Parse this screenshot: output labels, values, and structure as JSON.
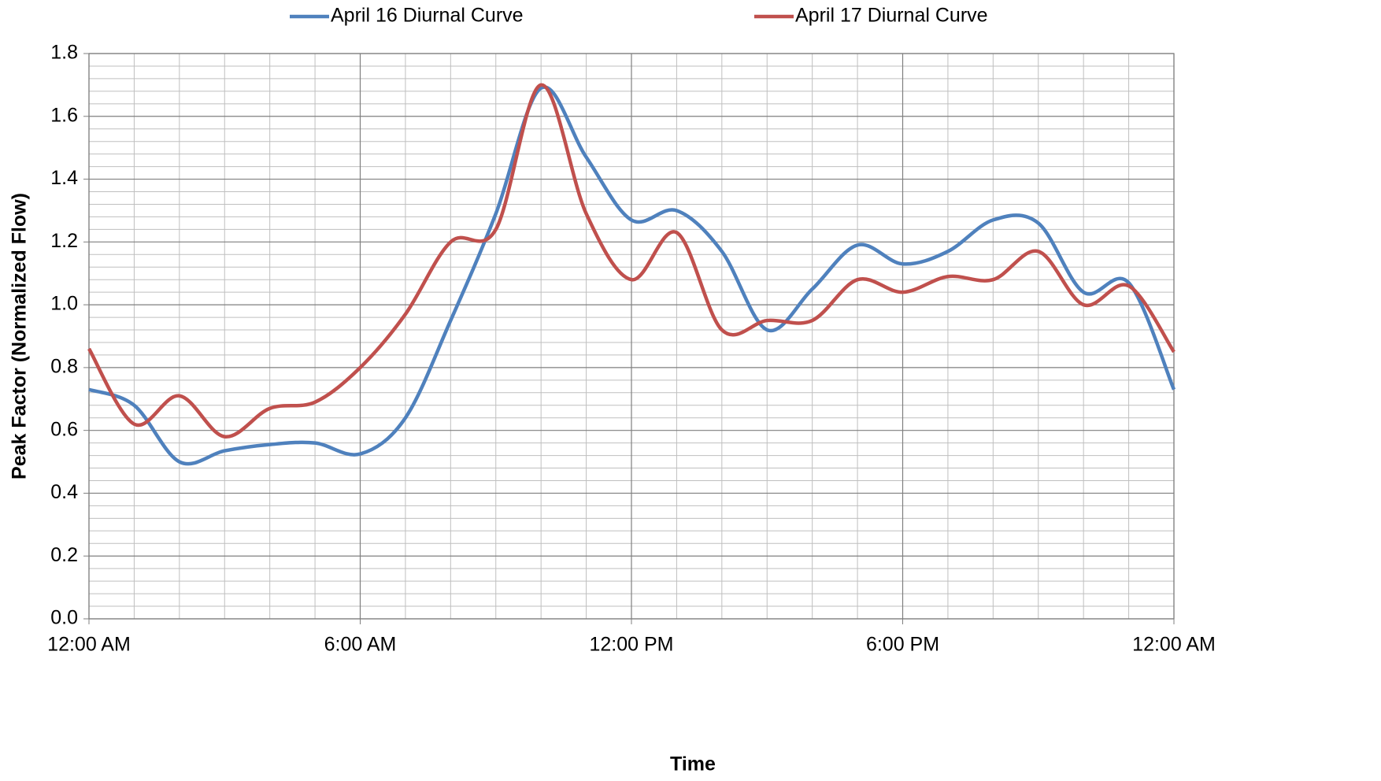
{
  "chart_data": {
    "type": "line",
    "x_label": "Time",
    "y_label": "Peak Factor (Normalized Flow)",
    "x": [
      0,
      1,
      2,
      3,
      4,
      5,
      6,
      7,
      8,
      9,
      10,
      11,
      12,
      13,
      14,
      15,
      16,
      17,
      18,
      19,
      20,
      21,
      22,
      23,
      24
    ],
    "series": [
      {
        "name": "April 16 Diurnal Curve",
        "color": "#4f81bd",
        "values": [
          0.73,
          0.68,
          0.5,
          0.535,
          0.555,
          0.56,
          0.525,
          0.64,
          0.95,
          1.29,
          1.69,
          1.47,
          1.27,
          1.3,
          1.17,
          0.92,
          1.05,
          1.19,
          1.13,
          1.17,
          1.27,
          1.26,
          1.04,
          1.07,
          0.73
        ]
      },
      {
        "name": "April 17 Diurnal Curve",
        "color": "#c0504d",
        "values": [
          0.86,
          0.62,
          0.71,
          0.58,
          0.67,
          0.69,
          0.8,
          0.97,
          1.2,
          1.24,
          1.7,
          1.29,
          1.08,
          1.23,
          0.92,
          0.95,
          0.95,
          1.08,
          1.04,
          1.09,
          1.08,
          1.17,
          1.0,
          1.06,
          0.85
        ]
      }
    ],
    "xlim": [
      0,
      24
    ],
    "xticks": [
      {
        "value": 0,
        "label": "12:00 AM"
      },
      {
        "value": 6,
        "label": "6:00 AM"
      },
      {
        "value": 12,
        "label": "12:00 PM"
      },
      {
        "value": 18,
        "label": "6:00 PM"
      },
      {
        "value": 24,
        "label": "12:00 AM"
      }
    ],
    "ylim": [
      0,
      1.8
    ],
    "yticks": [
      {
        "value": 0,
        "label": "0.0"
      },
      0.2,
      0.4,
      0.6,
      0.8,
      {
        "value": 1,
        "label": "1.0"
      },
      1.2,
      1.4,
      1.6,
      1.8
    ],
    "grid": true,
    "legend": "top"
  }
}
